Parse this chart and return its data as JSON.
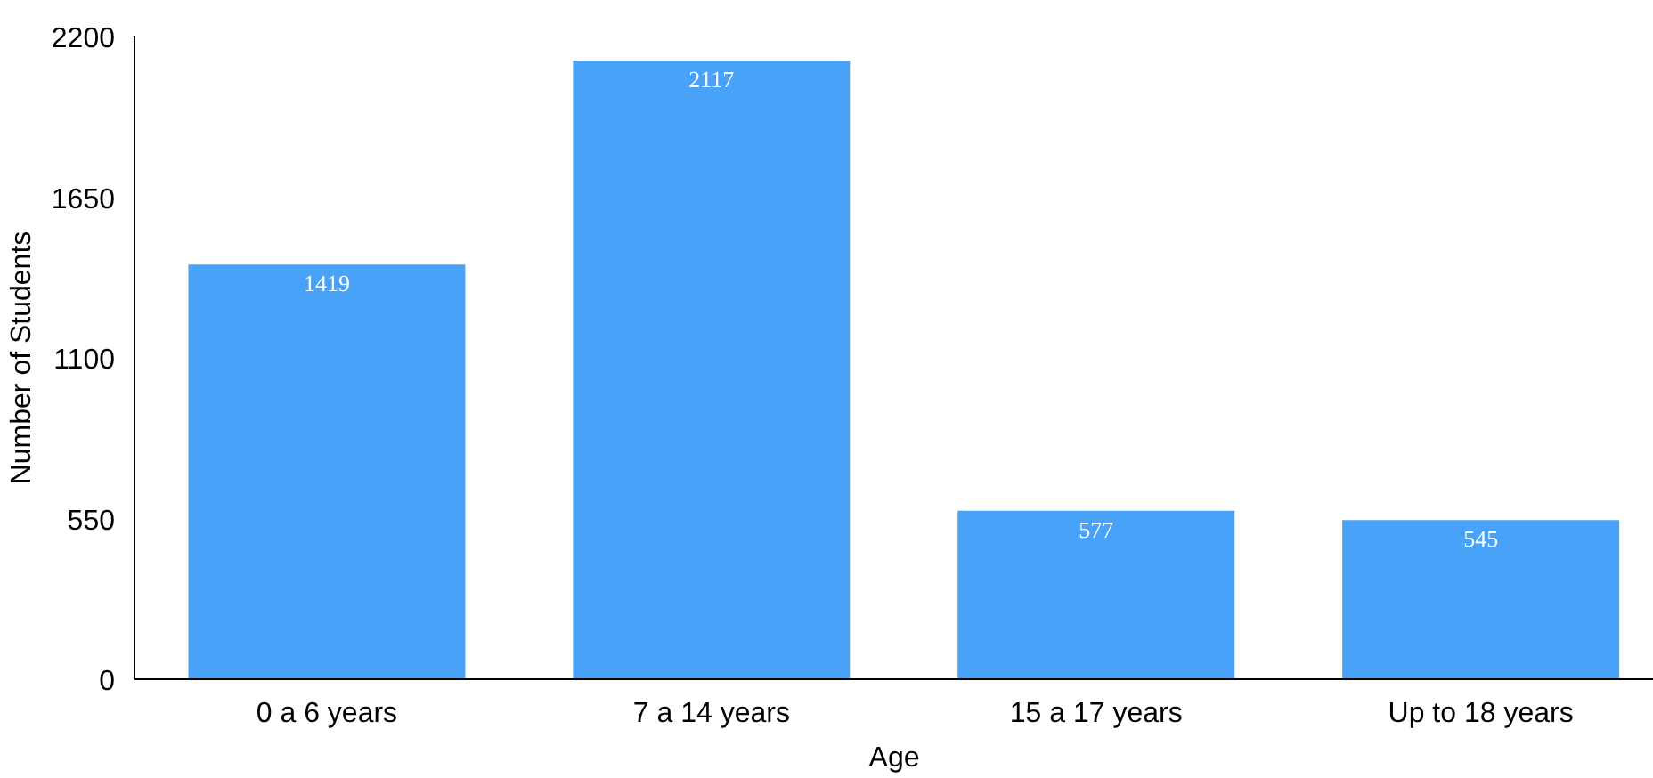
{
  "chart_data": {
    "type": "bar",
    "xlabel": "Age",
    "ylabel": "Number of Students",
    "categories": [
      "0 a 6 years",
      "7 a 14 years",
      "15 a 17 years",
      "Up to 18 years"
    ],
    "values": [
      1419,
      2117,
      577,
      545
    ],
    "color": "#48a2f7",
    "ylim": [
      0,
      2200
    ],
    "yticks": [
      0,
      550,
      1100,
      1650,
      2200
    ],
    "grid": false,
    "data_labels": true
  }
}
